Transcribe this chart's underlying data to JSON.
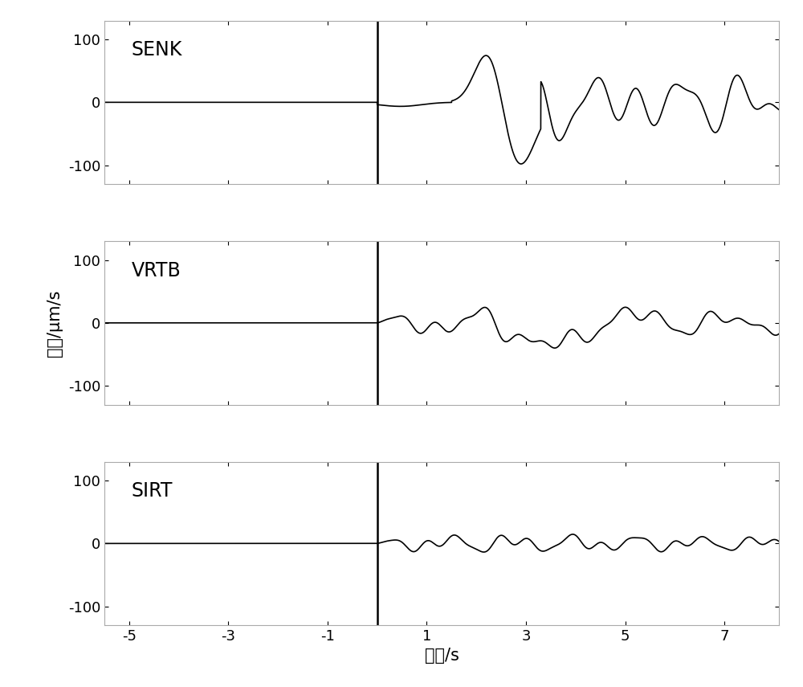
{
  "stations": [
    "SENK",
    "VRTB",
    "SIRT"
  ],
  "xlabel": "时间/s",
  "ylabel": "幅値/μm/s",
  "xlim": [
    -5.5,
    8.1
  ],
  "ylim": [
    -130,
    130
  ],
  "xticks": [
    -5,
    -3,
    -1,
    1,
    3,
    5,
    7
  ],
  "yticks": [
    -100,
    0,
    100
  ],
  "vline_x": 0.0,
  "background_color": "#ffffff",
  "line_color": "#000000",
  "label_fontsize": 15,
  "tick_fontsize": 13,
  "station_fontsize": 17
}
